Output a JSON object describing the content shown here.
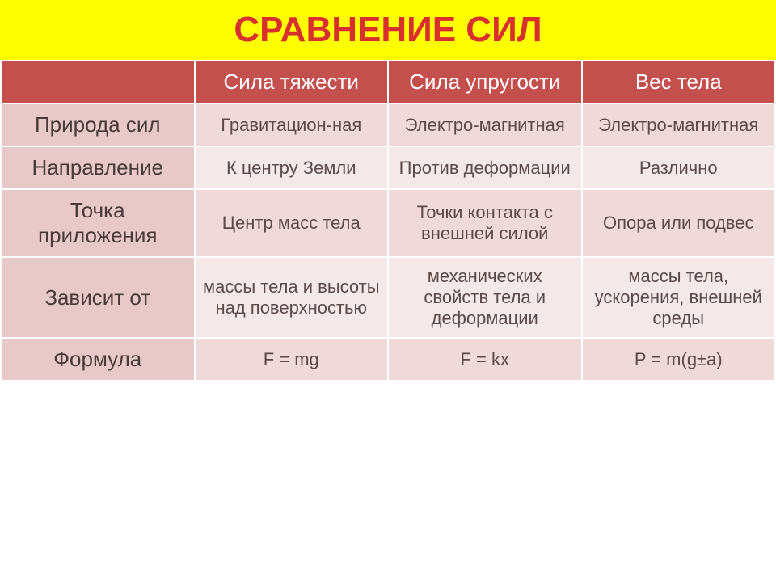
{
  "title": {
    "text": "СРАВНЕНИЕ  СИЛ",
    "bg_color": "#ffff00",
    "text_color": "#d8302e",
    "fontsize": 44
  },
  "table": {
    "header_bg": "#c4504e",
    "header_text_color": "#ffffff",
    "header_fontsize": 26,
    "row_label_bg": "#e6c9c8",
    "row_alt_bg_1": "#efdad9",
    "row_alt_bg_2": "#f4e8e8",
    "cell_text_color": "#5c4a49",
    "label_text_color": "#4a3a39",
    "cell_fontsize": 22,
    "label_fontsize": 26,
    "columns": [
      "",
      "Сила тяжести",
      "Сила упругости",
      "Вес тела"
    ],
    "rows": [
      {
        "label": "Природа сил",
        "cells": [
          "Гравитацион-ная",
          "Электро-магнитная",
          "Электро-магнитная"
        ]
      },
      {
        "label": "Направление",
        "cells": [
          "К центру Земли",
          "Против деформации",
          "Различно"
        ]
      },
      {
        "label": "Точка приложения",
        "cells": [
          "Центр масс тела",
          "Точки контакта с внешней силой",
          "Опора или подвес"
        ]
      },
      {
        "label": "Зависит от",
        "cells": [
          "массы тела и высоты над поверхностью",
          "механических свойств тела и деформации",
          "массы тела, ускорения, внешней среды"
        ]
      },
      {
        "label": "Формула",
        "cells": [
          "F = mg",
          "F = kx",
          "P = m(g±a)"
        ]
      }
    ]
  }
}
